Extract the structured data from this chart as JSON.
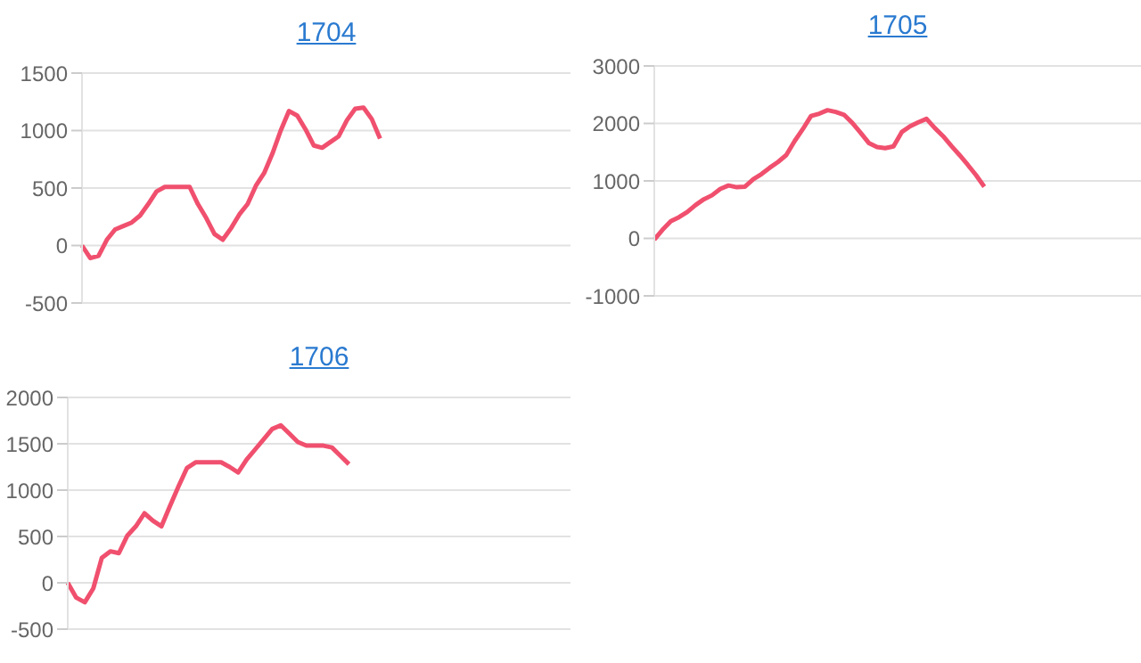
{
  "chart_data": [
    {
      "type": "line",
      "title": "1704",
      "color": "#f0506e",
      "ylim": [
        -500,
        1500
      ],
      "yticks": [
        -500,
        0,
        500,
        1000,
        1500
      ],
      "grid": "y",
      "tick_labels": "y",
      "marker": "none",
      "categories": [
        null,
        null,
        null,
        null,
        null,
        null,
        null,
        null,
        null,
        null,
        null,
        null,
        null,
        null,
        null,
        null,
        null,
        null,
        null,
        null,
        null,
        null,
        null,
        null,
        null,
        null,
        null,
        null,
        null,
        null,
        null,
        null,
        null,
        null,
        null,
        null,
        null,
        null,
        null,
        null,
        null,
        null,
        null,
        null,
        null,
        null,
        null,
        null,
        null,
        null,
        null,
        null,
        null,
        null,
        null,
        null,
        null,
        null,
        null,
        null
      ],
      "values": [
        0,
        -110,
        -90,
        50,
        140,
        170,
        200,
        260,
        360,
        470,
        510,
        510,
        510,
        510,
        360,
        240,
        100,
        50,
        150,
        270,
        360,
        520,
        630,
        800,
        1000,
        1170,
        1130,
        1010,
        870,
        850,
        900,
        950,
        1090,
        1190,
        1200,
        1100,
        930,
        null,
        null,
        null,
        null,
        null,
        null,
        null,
        null,
        null,
        null,
        null,
        null,
        null,
        null,
        null,
        null,
        null,
        null,
        null,
        null,
        null,
        null,
        null
      ]
    },
    {
      "type": "line",
      "title": "1705",
      "color": "#f0506e",
      "ylim": [
        -1000,
        3000
      ],
      "yticks": [
        -1000,
        0,
        1000,
        2000,
        3000
      ],
      "grid": "y",
      "tick_labels": "y",
      "marker": "none",
      "categories": [
        null,
        null,
        null,
        null,
        null,
        null,
        null,
        null,
        null,
        null,
        null,
        null,
        null,
        null,
        null,
        null,
        null,
        null,
        null,
        null,
        null,
        null,
        null,
        null,
        null,
        null,
        null,
        null,
        null,
        null,
        null,
        null,
        null,
        null,
        null,
        null,
        null,
        null,
        null,
        null,
        null,
        null,
        null,
        null,
        null,
        null,
        null,
        null,
        null,
        null,
        null,
        null,
        null,
        null,
        null,
        null,
        null,
        null,
        null,
        null
      ],
      "values": [
        -20,
        150,
        300,
        370,
        460,
        580,
        680,
        750,
        860,
        920,
        890,
        900,
        1030,
        1120,
        1230,
        1330,
        1450,
        1690,
        1900,
        2130,
        2170,
        2230,
        2200,
        2150,
        2010,
        1840,
        1660,
        1590,
        1570,
        1600,
        1850,
        1950,
        2020,
        2080,
        1920,
        1780,
        1610,
        1450,
        1280,
        1100,
        900,
        null,
        null,
        null,
        null,
        null,
        null,
        null,
        null,
        null,
        null,
        null,
        null,
        null,
        null,
        null,
        null,
        null,
        null,
        null
      ]
    },
    {
      "type": "line",
      "title": "1706",
      "color": "#f0506e",
      "ylim": [
        -500,
        2000
      ],
      "yticks": [
        -500,
        0,
        500,
        1000,
        1500,
        2000
      ],
      "grid": "y",
      "tick_labels": "y",
      "marker": "none",
      "categories": [
        null,
        null,
        null,
        null,
        null,
        null,
        null,
        null,
        null,
        null,
        null,
        null,
        null,
        null,
        null,
        null,
        null,
        null,
        null,
        null,
        null,
        null,
        null,
        null,
        null,
        null,
        null,
        null,
        null,
        null,
        null,
        null,
        null,
        null,
        null,
        null,
        null,
        null,
        null,
        null,
        null,
        null,
        null,
        null,
        null,
        null,
        null,
        null,
        null,
        null,
        null,
        null,
        null,
        null,
        null,
        null,
        null,
        null,
        null,
        null
      ],
      "values": [
        0,
        -160,
        -210,
        -60,
        270,
        340,
        320,
        510,
        610,
        750,
        670,
        610,
        830,
        1040,
        1240,
        1300,
        1300,
        1300,
        1300,
        1250,
        1190,
        1330,
        1440,
        1550,
        1660,
        1700,
        1610,
        1520,
        1480,
        1480,
        1480,
        1460,
        1370,
        1280,
        null,
        null,
        null,
        null,
        null,
        null,
        null,
        null,
        null,
        null,
        null,
        null,
        null,
        null,
        null,
        null,
        null,
        null,
        null,
        null,
        null,
        null,
        null,
        null,
        null,
        null
      ]
    }
  ]
}
